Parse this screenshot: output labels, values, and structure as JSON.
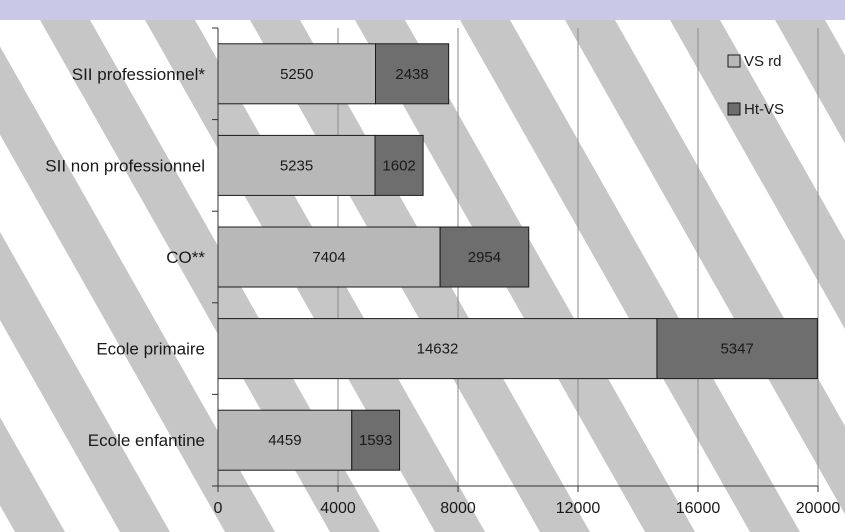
{
  "chart_data": {
    "type": "bar",
    "orientation": "horizontal",
    "stacked": true,
    "categories": [
      "SII professionnel*",
      "SII non professionnel",
      "CO**",
      "Ecole primaire",
      "Ecole enfantine"
    ],
    "series": [
      {
        "name": "VS rd",
        "values": [
          5250,
          5235,
          7404,
          14632,
          4459
        ],
        "color": "#b8b8b8"
      },
      {
        "name": "Ht-VS",
        "values": [
          2438,
          1602,
          2954,
          5347,
          1593
        ],
        "color": "#6e6e6e"
      }
    ],
    "xticks": [
      0,
      4000,
      8000,
      12000,
      16000,
      20000
    ],
    "xlim": [
      0,
      20000
    ],
    "grid": "vertical",
    "legend": "top-right",
    "colors": {
      "top_band": "#c9c8e6",
      "stripe": "#c6c6c6",
      "gridline": "#8a8a8a"
    }
  }
}
